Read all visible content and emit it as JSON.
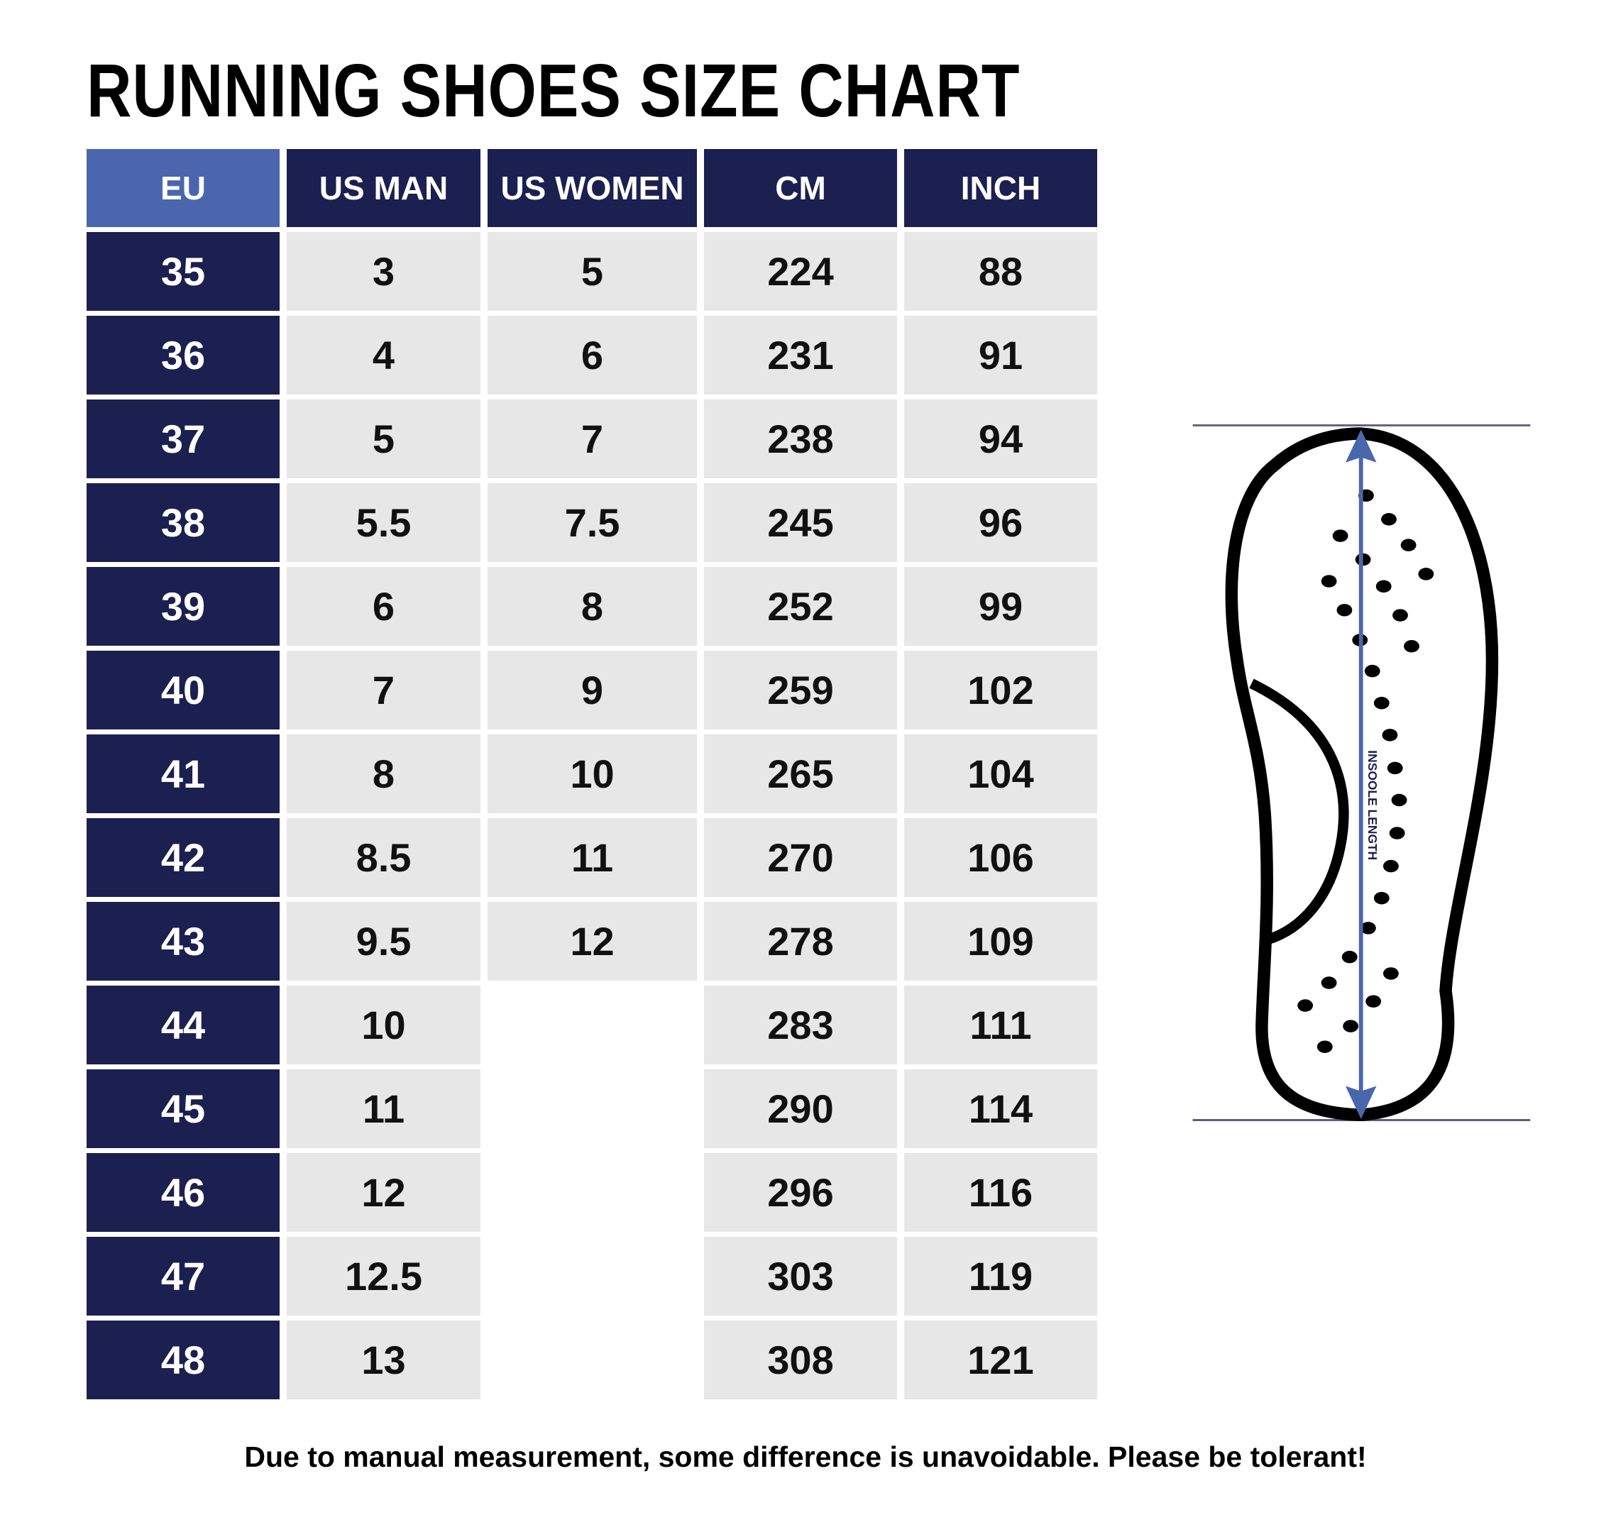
{
  "title": "RUNNING SHOES SIZE CHART",
  "colors": {
    "header_eu": "#4a67ad",
    "navy": "#1b2050",
    "cell_bg": "#e7e7e8",
    "arrow": "#4a67ad"
  },
  "table": {
    "headers": [
      "EU",
      "US MAN",
      "US WOMEN",
      "CM",
      "INCH"
    ],
    "rows": [
      [
        "35",
        "3",
        "5",
        "224",
        "88"
      ],
      [
        "36",
        "4",
        "6",
        "231",
        "91"
      ],
      [
        "37",
        "5",
        "7",
        "238",
        "94"
      ],
      [
        "38",
        "5.5",
        "7.5",
        "245",
        "96"
      ],
      [
        "39",
        "6",
        "8",
        "252",
        "99"
      ],
      [
        "40",
        "7",
        "9",
        "259",
        "102"
      ],
      [
        "41",
        "8",
        "10",
        "265",
        "104"
      ],
      [
        "42",
        "8.5",
        "11",
        "270",
        "106"
      ],
      [
        "43",
        "9.5",
        "12",
        "278",
        "109"
      ],
      [
        "44",
        "10",
        null,
        "283",
        "111"
      ],
      [
        "45",
        "11",
        null,
        "290",
        "114"
      ],
      [
        "46",
        "12",
        null,
        "296",
        "116"
      ],
      [
        "47",
        "12.5",
        null,
        "303",
        "119"
      ],
      [
        "48",
        "13",
        null,
        "308",
        "121"
      ]
    ]
  },
  "diagram": {
    "label": "INSOOLE LENGTH",
    "icon": "shoe-insole-outline-icon"
  },
  "footer": "Due to manual measurement, some difference is unavoidable. Please be tolerant!"
}
